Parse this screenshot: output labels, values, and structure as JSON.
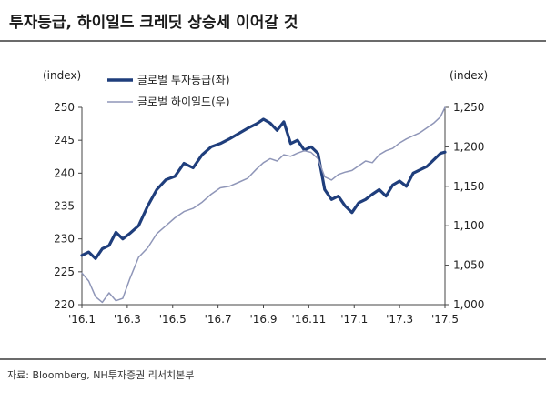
{
  "title": "투자등급, 하이일드 크레딧 상승세 이어갈 것",
  "source": "자료: Bloomberg, NH투자증권 리서치본부",
  "chart_data": {
    "type": "line",
    "left_axis": {
      "label": "(index)",
      "ylim": [
        220,
        250
      ],
      "ticks": [
        220,
        225,
        230,
        235,
        240,
        245,
        250
      ]
    },
    "right_axis": {
      "label": "(index)",
      "ylim": [
        1000,
        1250
      ],
      "ticks": [
        "1,000",
        "1,050",
        "1,100",
        "1,150",
        "1,200",
        "1,250"
      ],
      "tick_values": [
        1000,
        1050,
        1100,
        1150,
        1200,
        1250
      ]
    },
    "x_ticks": [
      "'16.1",
      "'16.3",
      "'16.5",
      "'16.7",
      "'16.9",
      "'16.11",
      "'17.1",
      "'17.3",
      "'17.5"
    ],
    "x_range": [
      0,
      16
    ],
    "series": [
      {
        "name": "글로벌 투자등급(좌)",
        "axis": "left",
        "color": "#1f3e7c",
        "x": [
          0,
          0.3,
          0.6,
          0.9,
          1.2,
          1.5,
          1.8,
          2.1,
          2.5,
          2.9,
          3.3,
          3.7,
          4.1,
          4.5,
          4.9,
          5.3,
          5.7,
          6.1,
          6.5,
          6.9,
          7.3,
          7.7,
          8.0,
          8.3,
          8.6,
          8.9,
          9.2,
          9.5,
          9.8,
          10.1,
          10.4,
          10.7,
          11.0,
          11.3,
          11.6,
          11.9,
          12.2,
          12.5,
          12.8,
          13.1,
          13.4,
          13.7,
          14.0,
          14.3,
          14.6,
          14.9,
          15.2,
          15.5,
          15.8,
          16.0
        ],
        "values": [
          227.5,
          228.0,
          227.0,
          228.5,
          229.0,
          231.0,
          230.0,
          230.8,
          232.0,
          235.0,
          237.5,
          239.0,
          239.5,
          241.5,
          240.8,
          242.8,
          244.0,
          244.5,
          245.2,
          246.0,
          246.8,
          247.5,
          248.2,
          247.6,
          246.5,
          247.8,
          244.5,
          245.0,
          243.5,
          244.0,
          243.0,
          237.5,
          236.0,
          236.5,
          235.0,
          234.0,
          235.5,
          236.0,
          236.8,
          237.5,
          236.5,
          238.2,
          238.8,
          238.0,
          240.0,
          240.5,
          241.0,
          242.0,
          243.0,
          243.2
        ]
      },
      {
        "name": "글로벌 하이일드(우)",
        "axis": "right",
        "color": "#8f96b8",
        "x": [
          0,
          0.3,
          0.6,
          0.9,
          1.2,
          1.5,
          1.8,
          2.1,
          2.5,
          2.9,
          3.3,
          3.7,
          4.1,
          4.5,
          4.9,
          5.3,
          5.7,
          6.1,
          6.5,
          6.9,
          7.3,
          7.7,
          8.0,
          8.3,
          8.6,
          8.9,
          9.2,
          9.5,
          9.8,
          10.1,
          10.4,
          10.7,
          11.0,
          11.3,
          11.6,
          11.9,
          12.2,
          12.5,
          12.8,
          13.1,
          13.4,
          13.7,
          14.0,
          14.3,
          14.6,
          14.9,
          15.2,
          15.5,
          15.8,
          16.0
        ],
        "values": [
          1040,
          1030,
          1010,
          1003,
          1015,
          1005,
          1008,
          1032,
          1060,
          1072,
          1090,
          1100,
          1110,
          1118,
          1122,
          1130,
          1140,
          1148,
          1150,
          1155,
          1160,
          1172,
          1180,
          1185,
          1182,
          1190,
          1188,
          1192,
          1195,
          1193,
          1185,
          1162,
          1158,
          1165,
          1168,
          1170,
          1176,
          1182,
          1180,
          1190,
          1195,
          1198,
          1205,
          1210,
          1214,
          1218,
          1224,
          1230,
          1238,
          1250
        ]
      }
    ]
  }
}
